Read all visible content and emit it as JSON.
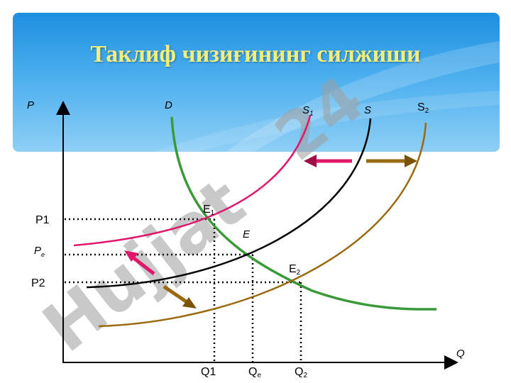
{
  "title": "Таклиф чизиғининг силжиши",
  "watermark": {
    "text": "Hujjat",
    "number": "24"
  },
  "axes": {
    "y_label": "P",
    "x_label": "Q"
  },
  "curves": {
    "demand": "D",
    "supply": "S",
    "supply_left": "S",
    "supply_left_sub": "1",
    "supply_right": "S",
    "supply_right_sub": "2"
  },
  "points": {
    "e1": "E",
    "e1_sub": "1",
    "e": "E",
    "e2": "E",
    "e2_sub": "2"
  },
  "price_labels": {
    "p1": "P1",
    "pe": "P",
    "pe_sub": "e",
    "p2": "P2"
  },
  "quantity_labels": {
    "q1": "Q1",
    "qe": "Q",
    "qe_sub": "e",
    "q2": "Q",
    "q2_sub": "2"
  },
  "colors": {
    "demand": "#3a9a3a",
    "supply": "#000000",
    "supply_left": "#e0176b",
    "supply_right": "#9a6a10",
    "title": "#f3ef7a",
    "banner": "#4aaeee"
  }
}
